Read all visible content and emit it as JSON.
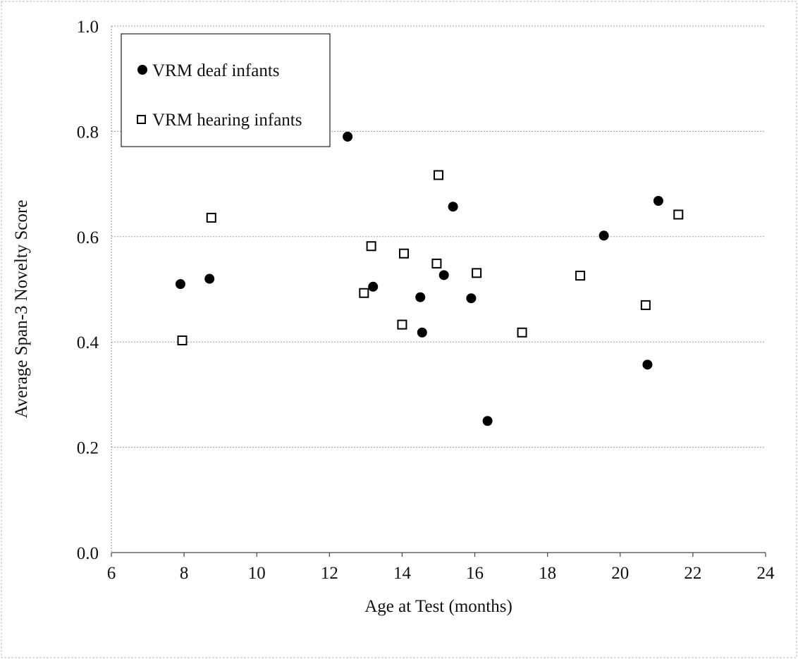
{
  "chart_data": {
    "type": "scatter",
    "title": "",
    "xlabel": "Age at Test (months)",
    "ylabel": "Average Span-3 Novelty Score",
    "xlim": [
      6,
      24
    ],
    "ylim": [
      0.0,
      1.0
    ],
    "x_ticks": [
      6,
      8,
      10,
      12,
      14,
      16,
      18,
      20,
      22,
      24
    ],
    "y_ticks": [
      0.0,
      0.2,
      0.4,
      0.6,
      0.8,
      1.0
    ],
    "x_tick_labels": [
      "6",
      "8",
      "10",
      "12",
      "14",
      "16",
      "18",
      "20",
      "22",
      "24"
    ],
    "y_tick_labels": [
      "0.0",
      "0.2",
      "0.4",
      "0.6",
      "0.8",
      "1.0"
    ],
    "grid": "horizontal",
    "legend_position": "top-left",
    "series": [
      {
        "name": "VRM deaf infants",
        "marker": "filled-circle",
        "color": "#000000",
        "points": [
          [
            7.9,
            0.51
          ],
          [
            8.7,
            0.52
          ],
          [
            12.5,
            0.79
          ],
          [
            13.2,
            0.505
          ],
          [
            14.5,
            0.485
          ],
          [
            14.55,
            0.418
          ],
          [
            15.15,
            0.527
          ],
          [
            15.4,
            0.657
          ],
          [
            15.9,
            0.483
          ],
          [
            16.35,
            0.25
          ],
          [
            19.55,
            0.602
          ],
          [
            20.75,
            0.357
          ],
          [
            21.05,
            0.668
          ]
        ]
      },
      {
        "name": "VRM hearing infants",
        "marker": "open-square",
        "color": "#000000",
        "points": [
          [
            7.95,
            0.403
          ],
          [
            8.75,
            0.636
          ],
          [
            12.95,
            0.493
          ],
          [
            13.15,
            0.582
          ],
          [
            14.0,
            0.433
          ],
          [
            14.05,
            0.568
          ],
          [
            14.95,
            0.549
          ],
          [
            15.0,
            0.717
          ],
          [
            16.05,
            0.531
          ],
          [
            17.3,
            0.418
          ],
          [
            18.9,
            0.526
          ],
          [
            20.7,
            0.47
          ],
          [
            21.6,
            0.642
          ]
        ]
      }
    ]
  }
}
